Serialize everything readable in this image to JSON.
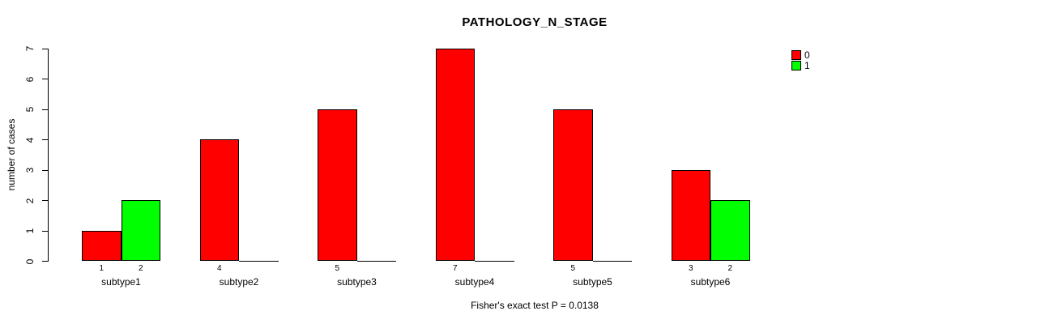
{
  "chart_data": {
    "type": "bar",
    "title": "PATHOLOGY_N_STAGE",
    "ylabel": "number of cases",
    "xlabel": "",
    "footer": "Fisher's exact test P = 0.0138",
    "categories": [
      "subtype1",
      "subtype2",
      "subtype3",
      "subtype4",
      "subtype5",
      "subtype6"
    ],
    "series": [
      {
        "name": "0",
        "color": "#ff0000",
        "values": [
          1,
          4,
          5,
          7,
          5,
          3
        ]
      },
      {
        "name": "1",
        "color": "#00ff00",
        "values": [
          2,
          0,
          0,
          0,
          0,
          2
        ]
      }
    ],
    "bar_value_labels": [
      [
        "1",
        "2"
      ],
      [
        "4",
        ""
      ],
      [
        "5",
        ""
      ],
      [
        "7",
        ""
      ],
      [
        "5",
        ""
      ],
      [
        "3",
        "2"
      ]
    ],
    "ylim": [
      0,
      7
    ],
    "yticks": [
      0,
      1,
      2,
      3,
      4,
      5,
      6,
      7
    ],
    "grid": false,
    "legend": {
      "position": "top-right",
      "entries": [
        {
          "label": "0",
          "color": "#ff0000"
        },
        {
          "label": "1",
          "color": "#00ff00"
        }
      ]
    },
    "colors": {
      "axis": "#000000",
      "background": "#ffffff"
    }
  }
}
